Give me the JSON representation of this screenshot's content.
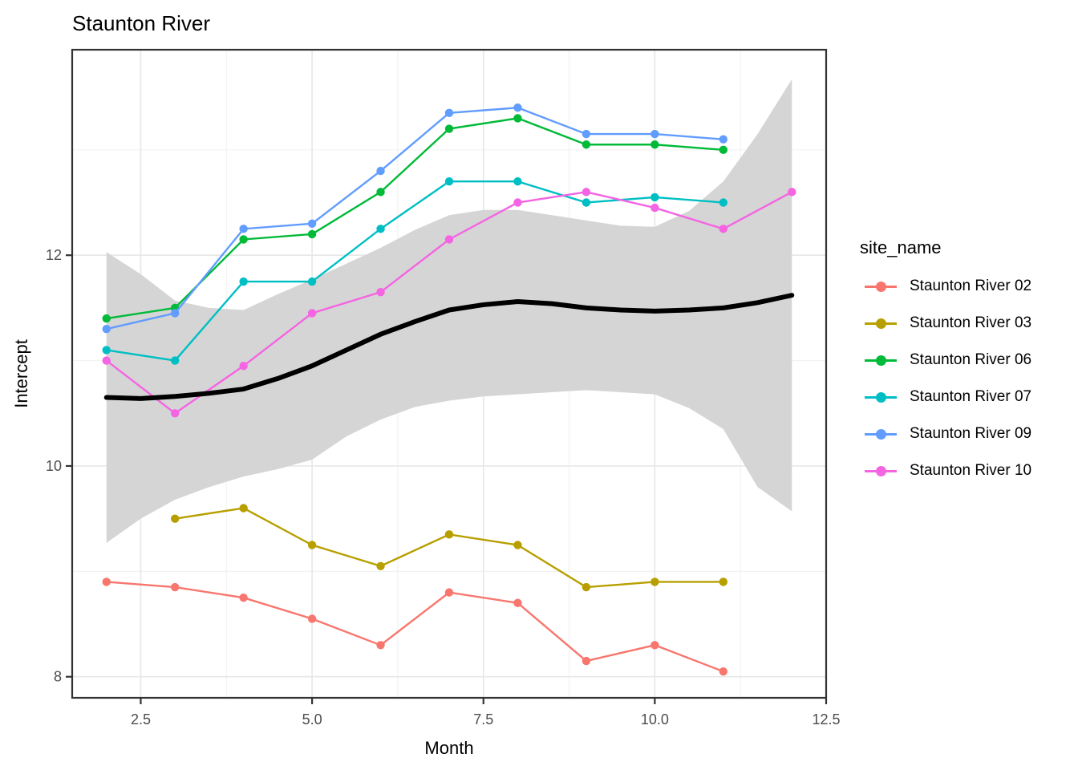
{
  "title": "Staunton River",
  "axes": {
    "x": {
      "label": "Month",
      "tick_labels": [
        "2.5",
        "5.0",
        "7.5",
        "10.0",
        "12.5"
      ],
      "ticks": [
        2.5,
        5.0,
        7.5,
        10.0,
        12.5
      ],
      "minor_ticks": [
        3.75,
        6.25,
        8.75,
        11.25
      ]
    },
    "y": {
      "label": "Intercept",
      "tick_labels": [
        "8",
        "10",
        "12"
      ],
      "ticks": [
        8,
        10,
        12
      ],
      "minor_ticks": [
        9,
        11,
        13
      ]
    }
  },
  "legend": {
    "title": "site_name"
  },
  "style": {
    "panel_border": "#333333",
    "grid_major": "#e7e7e7",
    "grid_minor": "#f0f0f0",
    "tick_text": "#4d4d4d",
    "ribbon": "#d5d5d5",
    "smooth_line": "#000000",
    "background": "#ffffff"
  },
  "chart_data": {
    "type": "line",
    "title": "Staunton River",
    "xlabel": "Month",
    "ylabel": "Intercept",
    "xlim": [
      1.5,
      12.5
    ],
    "ylim": [
      7.8,
      13.95
    ],
    "x_ticks": [
      2.5,
      5.0,
      7.5,
      10.0,
      12.5
    ],
    "y_ticks": [
      8,
      10,
      12
    ],
    "grid": true,
    "legend_title": "site_name",
    "legend_position": "right",
    "series": [
      {
        "name": "Staunton River 02",
        "color": "#F8766D",
        "x": [
          2,
          3,
          4,
          5,
          6,
          7,
          8,
          9,
          10,
          11
        ],
        "y": [
          8.9,
          8.85,
          8.75,
          8.55,
          8.3,
          8.8,
          8.7,
          8.15,
          8.3,
          8.05
        ]
      },
      {
        "name": "Staunton River 03",
        "color": "#B79F00",
        "x": [
          3,
          4,
          5,
          6,
          7,
          8,
          9,
          10,
          11
        ],
        "y": [
          9.5,
          9.6,
          9.25,
          9.05,
          9.35,
          9.25,
          8.85,
          8.9,
          8.9
        ]
      },
      {
        "name": "Staunton River 06",
        "color": "#00BA38",
        "x": [
          2,
          3,
          4,
          5,
          6,
          7,
          8,
          9,
          10,
          11
        ],
        "y": [
          11.4,
          11.5,
          12.15,
          12.2,
          12.6,
          13.2,
          13.3,
          13.05,
          13.05,
          13.0
        ]
      },
      {
        "name": "Staunton River 07",
        "color": "#00BFC4",
        "x": [
          2,
          3,
          4,
          5,
          6,
          7,
          8,
          9,
          10,
          11
        ],
        "y": [
          11.1,
          11.0,
          11.75,
          11.75,
          12.25,
          12.7,
          12.7,
          12.5,
          12.55,
          12.5
        ]
      },
      {
        "name": "Staunton River 09",
        "color": "#619CFF",
        "x": [
          2,
          3,
          4,
          5,
          6,
          7,
          8,
          9,
          10,
          11
        ],
        "y": [
          11.3,
          11.45,
          12.25,
          12.3,
          12.8,
          13.35,
          13.4,
          13.15,
          13.15,
          13.1
        ]
      },
      {
        "name": "Staunton River 10",
        "color": "#F564E3",
        "x": [
          2,
          3,
          4,
          5,
          6,
          7,
          8,
          9,
          10,
          11,
          12
        ],
        "y": [
          11.0,
          10.5,
          10.95,
          11.45,
          11.65,
          12.15,
          12.5,
          12.6,
          12.45,
          12.25,
          12.6
        ]
      }
    ],
    "smooth": {
      "name": "loess smooth with confidence band",
      "line_color": "#000000",
      "band_color": "#d5d5d5",
      "x": [
        2,
        2.5,
        3,
        3.5,
        4,
        4.5,
        5,
        5.5,
        6,
        6.5,
        7,
        7.5,
        8,
        8.5,
        9,
        9.5,
        10,
        10.5,
        11,
        11.5,
        12
      ],
      "y": [
        10.65,
        10.64,
        10.66,
        10.69,
        10.73,
        10.83,
        10.95,
        11.1,
        11.25,
        11.37,
        11.48,
        11.53,
        11.56,
        11.54,
        11.5,
        11.48,
        11.47,
        11.48,
        11.5,
        11.55,
        11.62
      ],
      "upper": [
        12.03,
        11.82,
        11.57,
        11.5,
        11.48,
        11.63,
        11.77,
        11.92,
        12.07,
        12.24,
        12.38,
        12.43,
        12.43,
        12.38,
        12.33,
        12.28,
        12.27,
        12.42,
        12.7,
        13.15,
        13.67
      ],
      "lower": [
        9.27,
        9.5,
        9.68,
        9.8,
        9.9,
        9.97,
        10.06,
        10.28,
        10.44,
        10.56,
        10.62,
        10.66,
        10.68,
        10.7,
        10.72,
        10.7,
        10.68,
        10.55,
        10.35,
        9.8,
        9.57
      ]
    }
  }
}
